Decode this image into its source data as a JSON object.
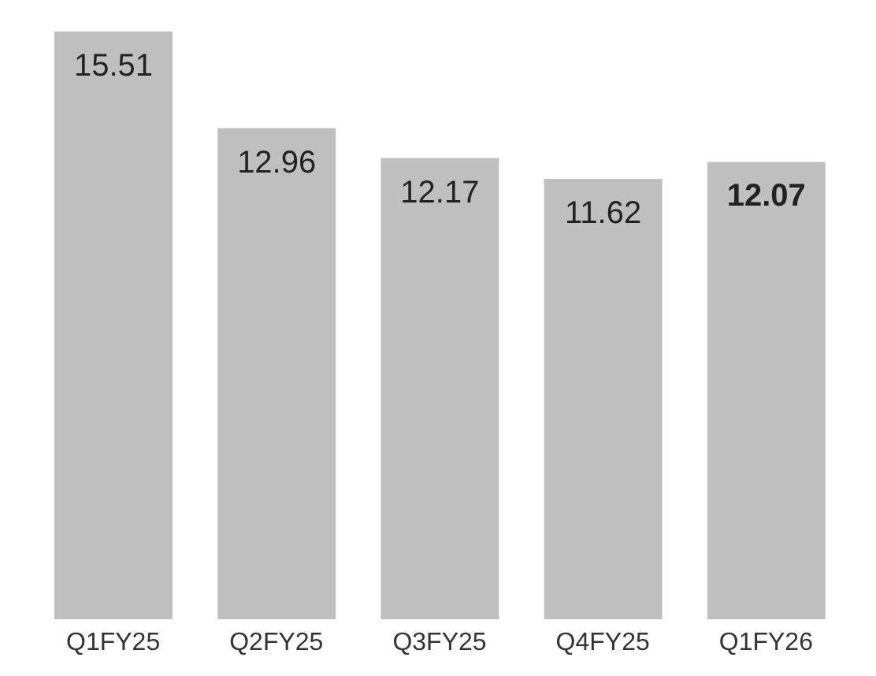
{
  "chart_data": {
    "type": "bar",
    "categories": [
      "Q1FY25",
      "Q2FY25",
      "Q3FY25",
      "Q4FY25",
      "Q1FY26"
    ],
    "values": [
      15.51,
      12.96,
      12.17,
      11.62,
      12.07
    ],
    "color": "#bfbfbf",
    "data_labels": true
  }
}
